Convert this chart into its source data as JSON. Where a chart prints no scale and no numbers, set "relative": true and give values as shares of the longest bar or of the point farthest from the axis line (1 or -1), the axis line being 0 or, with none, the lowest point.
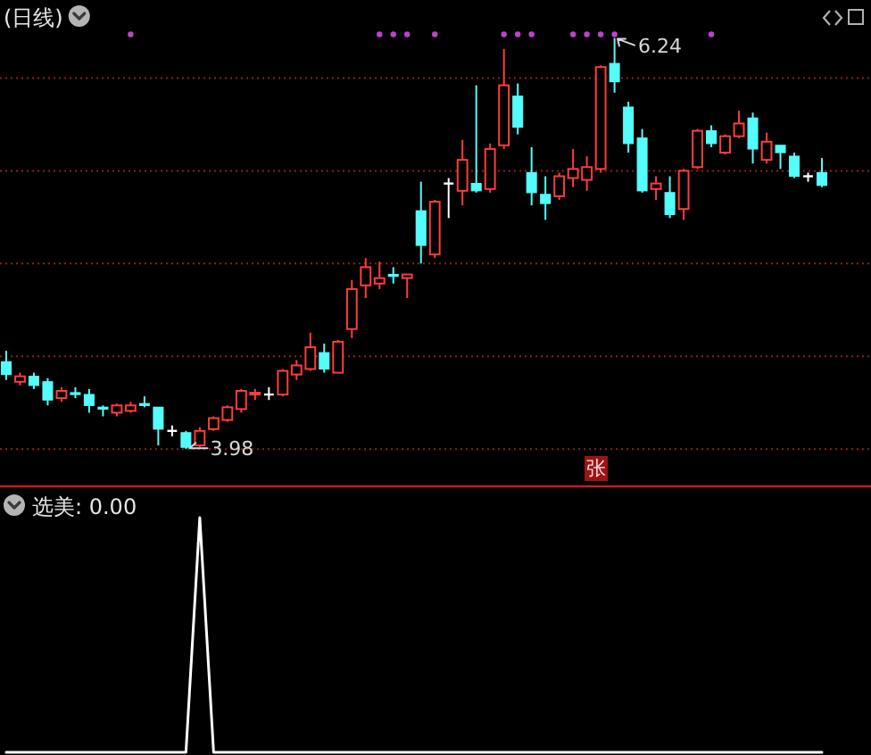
{
  "chart_data": [
    {
      "type": "candlestick",
      "title": "(日线)",
      "categories": [
        null,
        null,
        null,
        null,
        null,
        null,
        null,
        null,
        null,
        null,
        null,
        null,
        null,
        null,
        null,
        null,
        null,
        null,
        null,
        null,
        null,
        null,
        null,
        null,
        null,
        null,
        null,
        null,
        null,
        null,
        null,
        null,
        null,
        null,
        null,
        null,
        null,
        null,
        null,
        null,
        null,
        null,
        null,
        null,
        null,
        null,
        null,
        null,
        null,
        null,
        null,
        null,
        null,
        null,
        null,
        null,
        null,
        null,
        null,
        null
      ],
      "ohlc": [
        [
          4.46,
          4.52,
          4.36,
          4.39
        ],
        [
          4.35,
          4.4,
          4.33,
          4.38
        ],
        [
          4.38,
          4.4,
          4.31,
          4.33
        ],
        [
          4.35,
          4.37,
          4.22,
          4.25
        ],
        [
          4.26,
          4.32,
          4.24,
          4.3
        ],
        [
          4.29,
          4.32,
          4.26,
          4.28
        ],
        [
          4.28,
          4.31,
          4.18,
          4.22
        ],
        [
          4.21,
          4.22,
          4.16,
          4.2
        ],
        [
          4.18,
          4.23,
          4.16,
          4.22
        ],
        [
          4.19,
          4.24,
          4.18,
          4.22
        ],
        [
          4.23,
          4.27,
          4.21,
          4.22
        ],
        [
          4.21,
          4.21,
          4.0,
          4.09
        ],
        [
          4.08,
          4.11,
          4.05,
          4.08
        ],
        [
          4.07,
          4.08,
          3.98,
          3.99
        ],
        [
          4.0,
          4.1,
          3.99,
          4.08
        ],
        [
          4.09,
          4.16,
          4.08,
          4.15
        ],
        [
          4.14,
          4.22,
          4.13,
          4.21
        ],
        [
          4.2,
          4.31,
          4.18,
          4.3
        ],
        [
          4.28,
          4.31,
          4.25,
          4.29
        ],
        [
          4.28,
          4.32,
          4.25,
          4.28
        ],
        [
          4.28,
          4.42,
          4.27,
          4.41
        ],
        [
          4.39,
          4.47,
          4.36,
          4.44
        ],
        [
          4.42,
          4.62,
          4.41,
          4.54
        ],
        [
          4.51,
          4.56,
          4.4,
          4.42
        ],
        [
          4.4,
          4.58,
          4.4,
          4.57
        ],
        [
          4.64,
          4.91,
          4.59,
          4.86
        ],
        [
          4.88,
          5.03,
          4.81,
          4.98
        ],
        [
          4.89,
          5.01,
          4.86,
          4.92
        ],
        [
          4.94,
          4.98,
          4.89,
          4.93
        ],
        [
          4.92,
          4.94,
          4.81,
          4.94
        ],
        [
          5.29,
          5.45,
          5.0,
          5.1
        ],
        [
          5.05,
          5.35,
          5.03,
          5.34
        ],
        [
          5.44,
          5.47,
          5.25,
          5.44
        ],
        [
          5.4,
          5.68,
          5.32,
          5.57
        ],
        [
          5.44,
          5.98,
          5.39,
          5.4
        ],
        [
          5.41,
          5.66,
          5.39,
          5.63
        ],
        [
          5.65,
          6.18,
          5.63,
          5.98
        ],
        [
          5.92,
          5.99,
          5.71,
          5.75
        ],
        [
          5.5,
          5.64,
          5.32,
          5.39
        ],
        [
          5.38,
          5.48,
          5.24,
          5.33
        ],
        [
          5.37,
          5.5,
          5.35,
          5.48
        ],
        [
          5.47,
          5.63,
          5.42,
          5.52
        ],
        [
          5.46,
          5.59,
          5.4,
          5.53
        ],
        [
          5.52,
          6.09,
          5.5,
          6.08
        ],
        [
          6.1,
          6.24,
          5.94,
          6.0
        ],
        [
          5.86,
          5.89,
          5.61,
          5.66
        ],
        [
          5.69,
          5.74,
          5.39,
          5.4
        ],
        [
          5.41,
          5.48,
          5.35,
          5.44
        ],
        [
          5.39,
          5.48,
          5.25,
          5.27
        ],
        [
          5.3,
          5.52,
          5.24,
          5.51
        ],
        [
          5.53,
          5.74,
          5.52,
          5.73
        ],
        [
          5.73,
          5.76,
          5.64,
          5.66
        ],
        [
          5.61,
          5.71,
          5.6,
          5.7
        ],
        [
          5.7,
          5.84,
          5.69,
          5.77
        ],
        [
          5.8,
          5.83,
          5.55,
          5.63
        ],
        [
          5.57,
          5.72,
          5.55,
          5.67
        ],
        [
          5.65,
          5.65,
          5.52,
          5.61
        ],
        [
          5.59,
          5.61,
          5.47,
          5.48
        ],
        [
          5.48,
          5.5,
          5.45,
          5.48
        ],
        [
          5.5,
          5.58,
          5.42,
          5.43
        ]
      ],
      "colors": [
        "#54fcfc",
        "#ff3c3c",
        "#54fcfc",
        "#54fcfc",
        "#ff3c3c",
        "#54fcfc",
        "#54fcfc",
        "#54fcfc",
        "#ff3c3c",
        "#ff3c3c",
        "#54fcfc",
        "#54fcfc",
        "#ffffff",
        "#54fcfc",
        "#ff3c3c",
        "#ff3c3c",
        "#ff3c3c",
        "#ff3c3c",
        "#ff3c3c",
        "#ffffff",
        "#ff3c3c",
        "#ff3c3c",
        "#ff3c3c",
        "#54fcfc",
        "#ff3c3c",
        "#ff3c3c",
        "#ff3c3c",
        "#ff3c3c",
        "#54fcfc",
        "#ff3c3c",
        "#54fcfc",
        "#ff3c3c",
        "#ffffff",
        "#ff3c3c",
        "#54fcfc",
        "#ff3c3c",
        "#ff3c3c",
        "#54fcfc",
        "#54fcfc",
        "#54fcfc",
        "#ff3c3c",
        "#ff3c3c",
        "#ff3c3c",
        "#ff3c3c",
        "#54fcfc",
        "#54fcfc",
        "#54fcfc",
        "#ff3c3c",
        "#54fcfc",
        "#ff3c3c",
        "#ff3c3c",
        "#54fcfc",
        "#ff3c3c",
        "#ff3c3c",
        "#54fcfc",
        "#ff3c3c",
        "#54fcfc",
        "#54fcfc",
        "#ffffff",
        "#54fcfc"
      ],
      "yticks": [
        {
          "value": 3.98,
          "label": null
        },
        {
          "value": 4.49,
          "label": null
        },
        {
          "value": 5.0,
          "label": null
        },
        {
          "value": 5.51,
          "label": null
        },
        {
          "value": 6.02,
          "label": null
        }
      ],
      "grid": "y",
      "annotations": [
        "6.24",
        "3.98",
        "张"
      ],
      "series": [
        {
          "type": "scatter",
          "color": "#c040d0",
          "marker": "circle",
          "values": [
            null,
            null,
            null,
            null,
            null,
            null,
            null,
            null,
            null,
            6.26,
            null,
            null,
            null,
            null,
            null,
            null,
            null,
            null,
            null,
            null,
            null,
            null,
            null,
            null,
            null,
            null,
            null,
            6.26,
            6.26,
            6.26,
            null,
            6.26,
            null,
            null,
            null,
            null,
            6.26,
            6.26,
            6.26,
            null,
            null,
            6.26,
            6.26,
            6.26,
            6.26,
            null,
            null,
            null,
            null,
            null,
            null,
            6.26,
            null,
            null,
            null,
            null,
            null,
            null,
            null,
            null
          ]
        }
      ]
    },
    {
      "type": "line",
      "title": "选美: 0.00",
      "categories": [
        null,
        null,
        null,
        null,
        null,
        null,
        null,
        null,
        null,
        null,
        null,
        null,
        null,
        null,
        null,
        null,
        null,
        null,
        null,
        null,
        null,
        null,
        null,
        null,
        null,
        null,
        null,
        null,
        null,
        null,
        null,
        null,
        null,
        null,
        null,
        null,
        null,
        null,
        null,
        null,
        null,
        null,
        null,
        null,
        null,
        null,
        null,
        null,
        null,
        null,
        null,
        null,
        null,
        null,
        null,
        null,
        null,
        null,
        null,
        null
      ],
      "relative": true,
      "color": "#ffffff",
      "values": [
        0,
        0,
        0,
        0,
        0,
        0,
        0,
        0,
        0,
        0,
        0,
        0,
        0,
        0,
        1,
        0,
        0,
        0,
        0,
        0,
        0,
        0,
        0,
        0,
        0,
        0,
        0,
        0,
        0,
        0,
        0,
        0,
        0,
        0,
        0,
        0,
        0,
        0,
        0,
        0,
        0,
        0,
        0,
        0,
        0,
        0,
        0,
        0,
        0,
        0,
        0,
        0,
        0,
        0,
        0,
        0,
        0,
        0,
        0,
        0
      ]
    }
  ]
}
